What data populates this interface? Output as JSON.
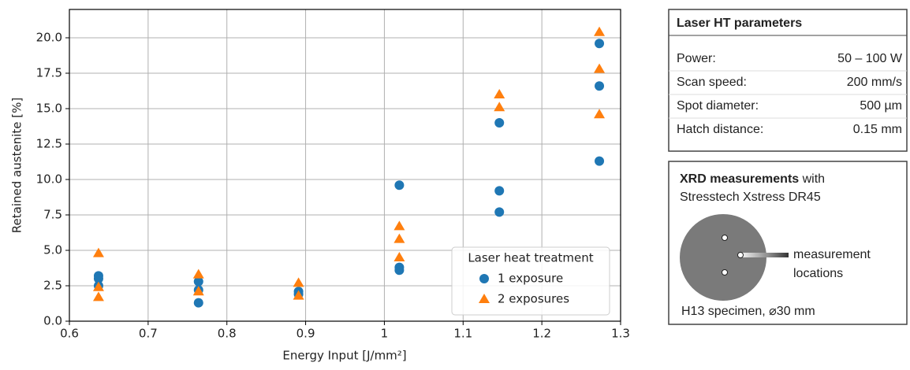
{
  "chart_data": {
    "type": "scatter",
    "xlabel": "Energy Input [J/mm²]",
    "ylabel": "Retained austenite [%]",
    "xlim": [
      0.6,
      1.3
    ],
    "ylim": [
      0,
      22
    ],
    "xticks": [
      0.6,
      0.7,
      0.8,
      0.9,
      1.0,
      1.1,
      1.2,
      1.3
    ],
    "yticks": [
      {
        "value": 0,
        "label": "0.0"
      },
      2.5,
      {
        "value": 5,
        "label": "5.0"
      },
      7.5,
      {
        "value": 10,
        "label": "10.0"
      },
      12.5,
      {
        "value": 15,
        "label": "15.0"
      },
      17.5,
      {
        "value": 20,
        "label": "20.0"
      }
    ],
    "grid": true,
    "legend_title": "Laser heat treatment",
    "legend_loc": "lower right",
    "series": [
      {
        "name": "1 exposure",
        "color": "#1f77b4",
        "marker": "o",
        "x": [
          0.637,
          0.637,
          0.637,
          0.764,
          0.764,
          0.764,
          0.891,
          0.891,
          1.019,
          1.019,
          1.019,
          1.146,
          1.146,
          1.146,
          1.273,
          1.273,
          1.273
        ],
        "values": [
          3.2,
          3.0,
          2.5,
          2.8,
          2.2,
          1.3,
          2.1,
          1.9,
          9.6,
          3.8,
          3.6,
          14.0,
          9.2,
          7.7,
          19.6,
          16.6,
          11.3
        ]
      },
      {
        "name": "2 exposures",
        "color": "#ff7f0e",
        "marker": "^",
        "x": [
          0.637,
          0.637,
          0.637,
          0.764,
          0.764,
          0.891,
          0.891,
          1.019,
          1.019,
          1.019,
          1.146,
          1.146,
          1.273,
          1.273,
          1.273
        ],
        "values": [
          4.8,
          2.4,
          1.7,
          3.3,
          2.1,
          2.7,
          1.8,
          6.7,
          5.8,
          4.5,
          16.0,
          15.1,
          20.4,
          17.8,
          14.6
        ]
      }
    ]
  },
  "parameters_table": {
    "title": "Laser HT parameters",
    "rows": [
      [
        "Power:",
        "50 – 100 W"
      ],
      [
        "Scan speed:",
        "200 mm/s"
      ],
      [
        "Spot diameter:",
        "500 µm"
      ],
      [
        "Hatch distance:",
        "0.15 mm"
      ]
    ]
  },
  "xrd_box": {
    "title_bold": "XRD measurements",
    "title_rest": " with",
    "device": "Stresstech Xstress DR45",
    "callout_line1": "measurement",
    "callout_line2": "locations",
    "specimen": "H13 specimen, ⌀30 mm"
  }
}
